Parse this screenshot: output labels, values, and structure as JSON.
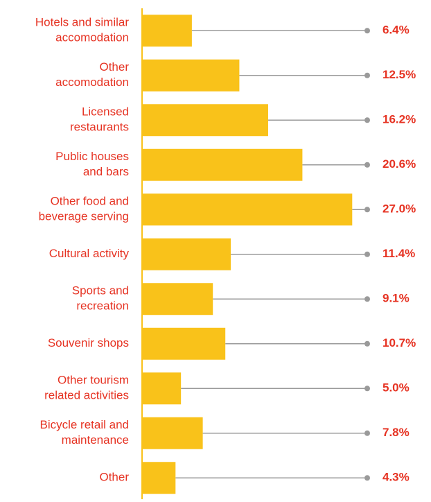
{
  "chart_data": {
    "type": "bar",
    "orientation": "horizontal",
    "categories": [
      [
        "Hotels and similar",
        "accomodation"
      ],
      [
        "Other",
        "accomodation"
      ],
      [
        "Licensed",
        "restaurants"
      ],
      [
        "Public houses",
        "and bars"
      ],
      [
        "Other food and",
        "beverage serving"
      ],
      [
        "Cultural activity"
      ],
      [
        "Sports and",
        "recreation"
      ],
      [
        "Souvenir shops"
      ],
      [
        "Other tourism",
        "related activities"
      ],
      [
        "Bicycle retail and",
        "maintenance"
      ],
      [
        "Other"
      ]
    ],
    "values": [
      6.4,
      12.5,
      16.2,
      20.6,
      27.0,
      11.4,
      9.1,
      10.7,
      5.0,
      7.8,
      4.3
    ],
    "value_labels": [
      "6.4%",
      "12.5%",
      "16.2%",
      "20.6%",
      "27.0%",
      "11.4%",
      "9.1%",
      "10.7%",
      "5.0%",
      "7.8%",
      "4.3%"
    ],
    "color": "#f9c21a",
    "label_color": "#e63323",
    "xlim": [
      0,
      30
    ]
  }
}
